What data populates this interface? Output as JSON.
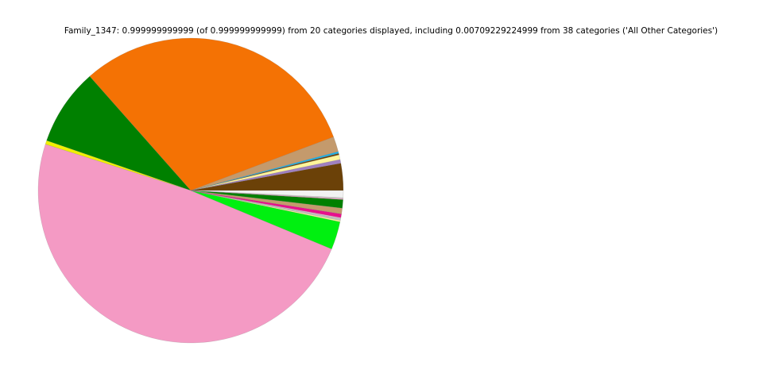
{
  "chart_data": {
    "type": "pie",
    "title": "Family_1347: 0.999999999999 (of 0.999999999999) from 20 categories displayed, including 0.00709229224999 from 38 categories ('All Other Categories')",
    "start_angle_deg": 0,
    "direction": "counterclockwise",
    "legend": "none",
    "slices": [
      {
        "value": 0.0287,
        "color": "#6b4108"
      },
      {
        "value": 0.004,
        "color": "#a080c0"
      },
      {
        "value": 0.005,
        "color": "#fff59a"
      },
      {
        "value": 0.0015,
        "color": "#6b4108"
      },
      {
        "value": 0.002,
        "color": "#1ab0e8"
      },
      {
        "value": 0.016,
        "color": "#c49a6c"
      },
      {
        "value": 0.308,
        "color": "#f47204"
      },
      {
        "value": 0.0817,
        "color": "#008000"
      },
      {
        "value": 0.004,
        "color": "#f0f000"
      },
      {
        "value": 0.4864,
        "color": "#f49ac4"
      },
      {
        "value": 0.0297,
        "color": "#00f010"
      },
      {
        "value": 0.0015,
        "color": "#fff59a"
      },
      {
        "value": 0.002,
        "color": "#c0c0c0"
      },
      {
        "value": 0.001,
        "color": "#f4c0d8"
      },
      {
        "value": 0.004,
        "color": "#e8108c"
      },
      {
        "value": 0.006,
        "color": "#c49a6c"
      },
      {
        "value": 0.009,
        "color": "#008000"
      },
      {
        "value": 0.001,
        "color": "#f49ac4"
      },
      {
        "value": 0.001,
        "color": "#d8d8d8"
      },
      {
        "value": 0.0075,
        "color": "#f2f2f2"
      }
    ]
  }
}
